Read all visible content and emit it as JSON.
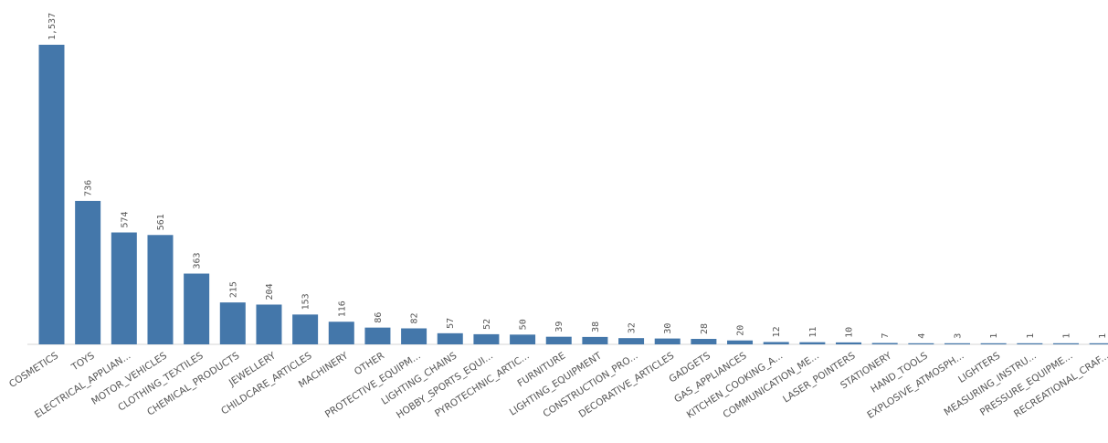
{
  "chart_data": {
    "type": "bar",
    "categories": [
      "COSMETICS",
      "TOYS",
      "ELECTRICAL_APPLIAN...",
      "MOTOR_VEHICLES",
      "CLOTHING_TEXTILES",
      "CHEMICAL_PRODUCTS",
      "JEWELLERY",
      "CHILDCARE_ARTICLES",
      "MACHINERY",
      "OTHER",
      "PROTECTIVE_EQUIPM...",
      "LIGHTING_CHAINS",
      "HOBBY_SPORTS_EQUI...",
      "PYROTECHNIC_ARTIC...",
      "FURNITURE",
      "LIGHTING_EQUIPMENT",
      "CONSTRUCTION_PRO...",
      "DECORATIVE_ARTICLES",
      "GADGETS",
      "GAS_APPLIANCES",
      "KITCHEN_COOKING_A...",
      "COMMUNICATION_ME...",
      "LASER_POINTERS",
      "STATIONERY",
      "HAND_TOOLS",
      "EXPLOSIVE_ATMOSPH...",
      "LIGHTERS",
      "MEASURING_INSTRU...",
      "PRESSURE_EQUIPME...",
      "RECREATIONAL_CRAF..."
    ],
    "values": [
      1537,
      736,
      574,
      561,
      363,
      215,
      204,
      153,
      116,
      86,
      82,
      57,
      52,
      50,
      39,
      38,
      32,
      30,
      28,
      20,
      12,
      11,
      10,
      7,
      4,
      3,
      1,
      1,
      1,
      1
    ],
    "value_labels": [
      "1,537",
      "736",
      "574",
      "561",
      "363",
      "215",
      "204",
      "153",
      "116",
      "86",
      "82",
      "57",
      "52",
      "50",
      "39",
      "38",
      "32",
      "30",
      "28",
      "20",
      "12",
      "11",
      "10",
      "7",
      "4",
      "3",
      "1",
      "1",
      "1",
      "1"
    ],
    "title": "",
    "xlabel": "",
    "ylabel": "",
    "ylim": [
      0,
      1537
    ],
    "grid": false,
    "legend": "none",
    "colors": {
      "bar": "#4477aa",
      "text": "#555555",
      "axis": "#d4d4d4"
    }
  }
}
